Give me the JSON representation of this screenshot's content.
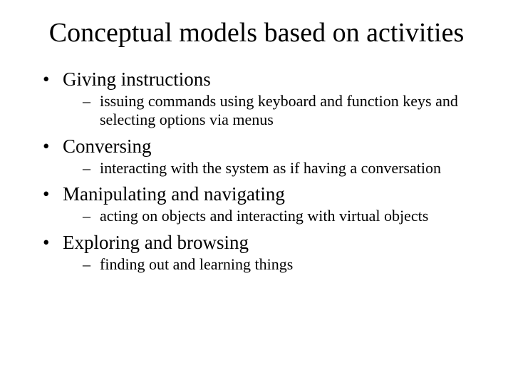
{
  "title": "Conceptual models based on activities",
  "items": [
    {
      "label": "Giving instructions",
      "sub": "issuing commands using keyboard and function keys and selecting options via menus"
    },
    {
      "label": "Conversing",
      "sub": "interacting with the system as if having a conversation"
    },
    {
      "label": "Manipulating and navigating",
      "sub": "acting on objects and interacting with virtual objects"
    },
    {
      "label": "Exploring and browsing",
      "sub": "finding out and learning things"
    }
  ],
  "colors": {
    "background": "#ffffff",
    "text": "#000000"
  },
  "typography": {
    "title_fontsize": 38,
    "bullet_fontsize": 27,
    "sub_fontsize": 22,
    "font_family": "Times New Roman"
  }
}
